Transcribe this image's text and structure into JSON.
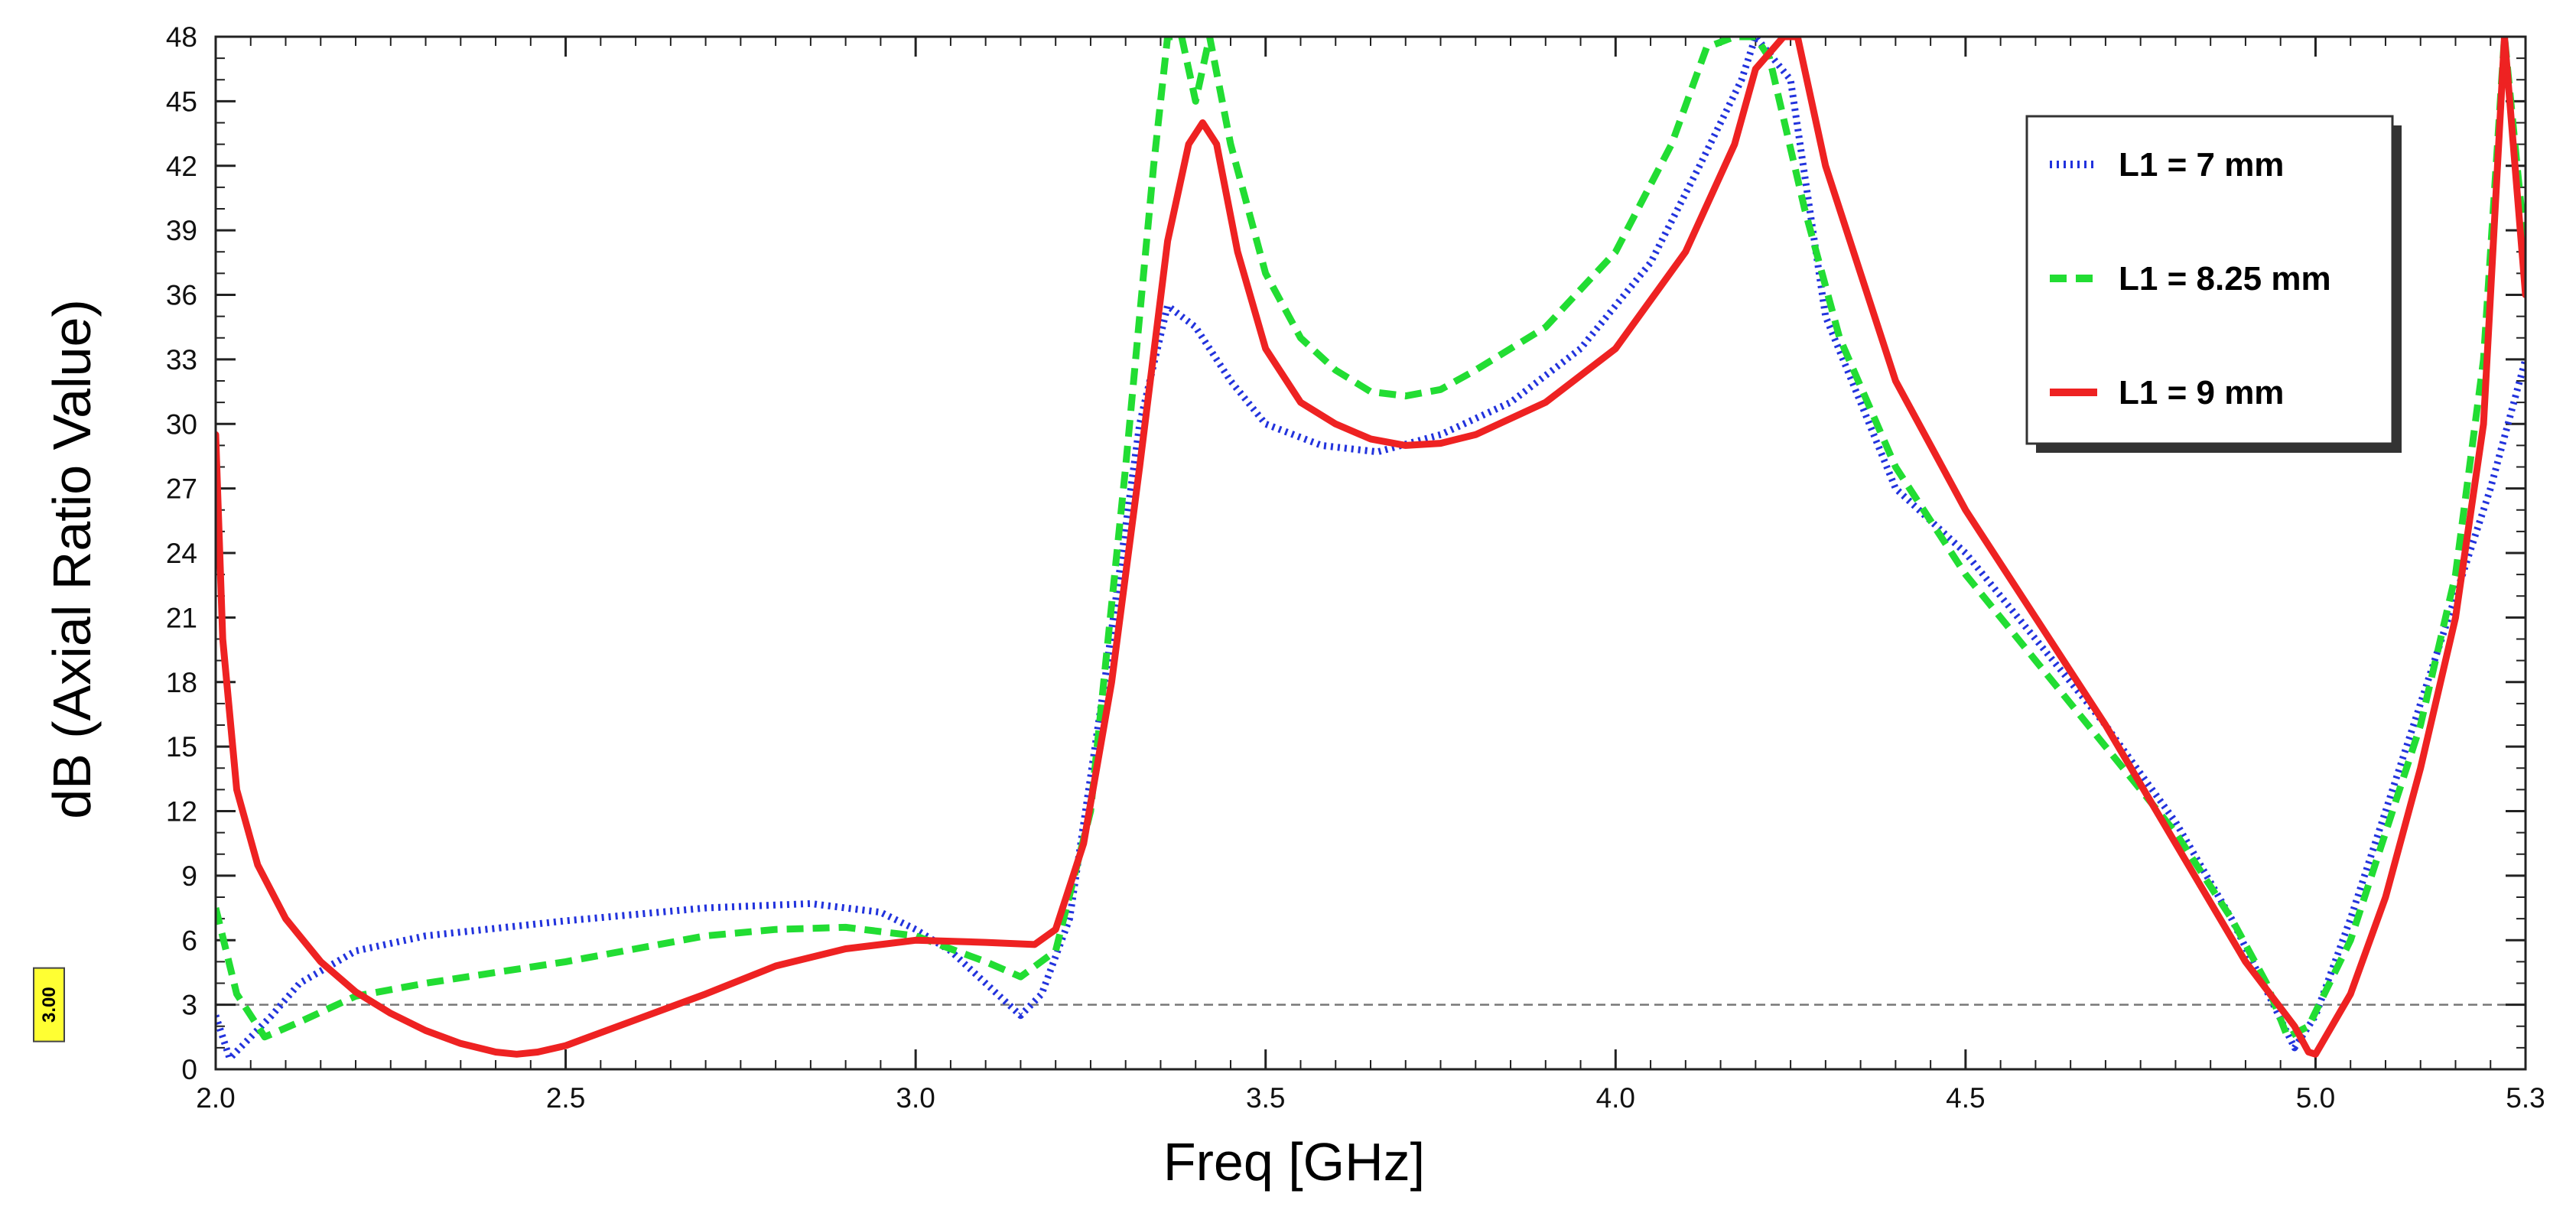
{
  "chart_data": {
    "type": "line",
    "xlabel": "Freq [GHz]",
    "ylabel": "dB (Axial Ratio Value)",
    "xlim": [
      2.0,
      5.3
    ],
    "ylim": [
      0,
      48
    ],
    "x_ticks": [
      2.0,
      2.5,
      3.0,
      3.5,
      4.0,
      4.5,
      5.0,
      5.3
    ],
    "x_tick_labels": [
      "2.0",
      "2.5",
      "3.0",
      "3.5",
      "4.0",
      "4.5",
      "5.0",
      "5.3"
    ],
    "y_ticks": [
      0,
      3,
      6,
      9,
      12,
      15,
      18,
      21,
      24,
      27,
      30,
      33,
      36,
      39,
      42,
      45,
      48
    ],
    "y_tick_labels": [
      "0",
      "3",
      "6",
      "9",
      "12",
      "15",
      "18",
      "21",
      "24",
      "27",
      "30",
      "33",
      "36",
      "39",
      "42",
      "45",
      "48"
    ],
    "grid": false,
    "legend_position": "top-right",
    "reference_line": {
      "y": 3.0,
      "label": "3.00",
      "color": "#777777"
    },
    "series": [
      {
        "name": "L1 = 7 mm",
        "color": "#2233dd",
        "style": "dotted",
        "x": [
          2.0,
          2.02,
          2.05,
          2.08,
          2.12,
          2.2,
          2.3,
          2.5,
          2.7,
          2.85,
          2.95,
          3.0,
          3.05,
          3.1,
          3.15,
          3.18,
          3.22,
          3.27,
          3.32,
          3.36,
          3.4,
          3.45,
          3.5,
          3.58,
          3.66,
          3.75,
          3.85,
          3.95,
          4.05,
          4.12,
          4.18,
          4.2,
          4.25,
          4.3,
          4.4,
          4.5,
          4.6,
          4.7,
          4.8,
          4.88,
          4.94,
          4.97,
          5.0,
          5.05,
          5.1,
          5.15,
          5.2,
          5.25,
          5.3
        ],
        "y": [
          2.5,
          0.5,
          1.5,
          2.5,
          4.0,
          5.5,
          6.2,
          6.9,
          7.5,
          7.7,
          7.3,
          6.5,
          5.5,
          4.0,
          2.5,
          3.5,
          7.0,
          18.0,
          30.0,
          35.5,
          34.5,
          32.0,
          30.0,
          29.0,
          28.7,
          29.5,
          31.0,
          33.5,
          37.5,
          42.0,
          46.0,
          48.0,
          46.0,
          35.0,
          27.0,
          24.0,
          20.0,
          16.0,
          11.5,
          7.0,
          3.0,
          1.0,
          2.5,
          7.0,
          12.0,
          17.0,
          22.0,
          27.0,
          33.0
        ]
      },
      {
        "name": "L1 = 8.25 mm",
        "color": "#22dd33",
        "style": "dashed",
        "x": [
          2.0,
          2.03,
          2.07,
          2.12,
          2.2,
          2.3,
          2.4,
          2.5,
          2.6,
          2.7,
          2.8,
          2.9,
          3.0,
          3.05,
          3.1,
          3.15,
          3.2,
          3.25,
          3.3,
          3.34,
          3.36,
          3.38,
          3.4,
          3.42,
          3.45,
          3.5,
          3.55,
          3.6,
          3.65,
          3.7,
          3.75,
          3.8,
          3.9,
          4.0,
          4.08,
          4.13,
          4.17,
          4.2,
          4.22,
          4.27,
          4.32,
          4.4,
          4.5,
          4.6,
          4.7,
          4.8,
          4.88,
          4.93,
          4.96,
          4.99,
          5.05,
          5.1,
          5.15,
          5.2,
          5.24,
          5.27,
          5.3
        ],
        "y": [
          7.5,
          3.5,
          1.5,
          2.2,
          3.4,
          4.0,
          4.5,
          5.0,
          5.6,
          6.2,
          6.5,
          6.6,
          6.2,
          5.6,
          5.0,
          4.3,
          5.5,
          12.0,
          28.0,
          42.0,
          48.0,
          48.0,
          45.0,
          48.0,
          43.0,
          37.0,
          34.0,
          32.5,
          31.5,
          31.3,
          31.6,
          32.5,
          34.5,
          38.0,
          43.0,
          47.5,
          48.0,
          48.0,
          47.0,
          40.0,
          34.0,
          28.0,
          23.0,
          19.0,
          15.0,
          11.0,
          7.0,
          4.0,
          1.5,
          2.0,
          6.0,
          11.0,
          16.0,
          23.0,
          33.0,
          48.0,
          38.0
        ]
      },
      {
        "name": "L1 = 9 mm",
        "color": "#ee2222",
        "style": "solid",
        "x": [
          2.0,
          2.01,
          2.03,
          2.06,
          2.1,
          2.15,
          2.2,
          2.25,
          2.3,
          2.35,
          2.4,
          2.43,
          2.46,
          2.5,
          2.6,
          2.7,
          2.8,
          2.9,
          3.0,
          3.1,
          3.17,
          3.2,
          3.24,
          3.28,
          3.32,
          3.36,
          3.39,
          3.41,
          3.43,
          3.46,
          3.5,
          3.55,
          3.6,
          3.65,
          3.7,
          3.75,
          3.8,
          3.9,
          4.0,
          4.1,
          4.17,
          4.2,
          4.24,
          4.26,
          4.3,
          4.4,
          4.5,
          4.6,
          4.7,
          4.8,
          4.9,
          4.97,
          4.99,
          5.0,
          5.05,
          5.1,
          5.15,
          5.2,
          5.24,
          5.27,
          5.3
        ],
        "y": [
          29.5,
          20.0,
          13.0,
          9.5,
          7.0,
          5.0,
          3.6,
          2.6,
          1.8,
          1.2,
          0.8,
          0.7,
          0.8,
          1.1,
          2.3,
          3.5,
          4.8,
          5.6,
          6.0,
          5.9,
          5.8,
          6.5,
          10.5,
          18.0,
          28.0,
          38.5,
          43.0,
          44.0,
          43.0,
          38.0,
          33.5,
          31.0,
          30.0,
          29.3,
          29.0,
          29.1,
          29.5,
          31.0,
          33.5,
          38.0,
          43.0,
          46.5,
          48.0,
          48.0,
          42.0,
          32.0,
          26.0,
          21.0,
          16.0,
          10.5,
          5.0,
          2.0,
          0.8,
          0.7,
          3.5,
          8.0,
          14.0,
          21.0,
          30.0,
          48.0,
          36.0
        ]
      }
    ]
  }
}
